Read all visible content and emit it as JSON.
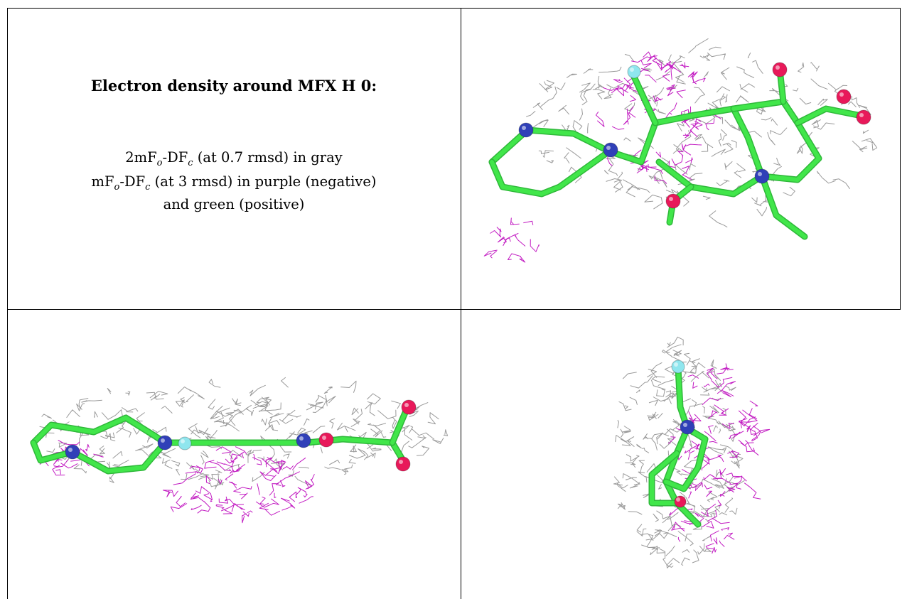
{
  "caption": {
    "title": "Electron density around MFX H 0:",
    "line1": {
      "a": "2mF",
      "sub1": "o",
      "b": "-DF",
      "sub2": "c",
      "c": " (at 0.7 rmsd) in gray"
    },
    "line2": {
      "a": "mF",
      "sub1": "o",
      "b": "-DF",
      "sub2": "c",
      "c": " (at 3 rmsd) in purple (negative)"
    },
    "line3": "and green (positive)"
  },
  "colors": {
    "mesh_gray": "#9a9a9a",
    "mesh_purple": "#c21bc2",
    "carbon_green": "#41e64a",
    "nitrogen_blue": "#3040b8",
    "oxygen_red": "#e8195a",
    "fluorine_cyan": "#8fe6ee"
  },
  "panels": [
    {
      "view": "top-right"
    },
    {
      "view": "bottom-left"
    },
    {
      "view": "bottom-right"
    }
  ]
}
